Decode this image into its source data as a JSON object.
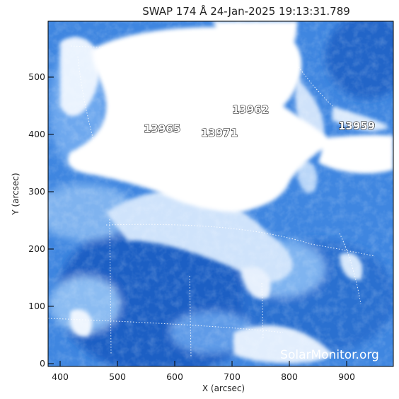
{
  "title": "SWAP 174 Å 24-Jan-2025 19:13:31.789",
  "x_axis_label": "X (arcsec)",
  "y_axis_label": "Y (arcsec)",
  "x_ticks": [
    "400",
    "500",
    "600",
    "700",
    "800",
    "900"
  ],
  "y_ticks": [
    "0",
    "100",
    "200",
    "300",
    "400",
    "500"
  ],
  "active_regions": [
    "13965",
    "13971",
    "13962",
    "13959"
  ],
  "watermark": "SolarMonitor.org",
  "colors": {
    "image_deep_blue": "#1f5fc4",
    "image_mid_blue": "#4a8ee6",
    "image_light_blue": "#a9ccf6",
    "saturated_white": "#ffffff",
    "grid_dotted": "#ffffff"
  }
}
